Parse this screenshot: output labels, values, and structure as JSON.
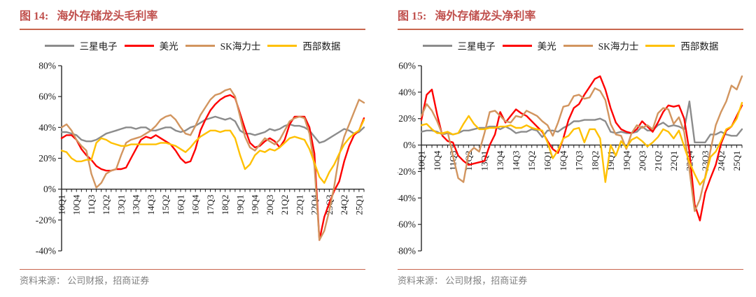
{
  "colors": {
    "title": "#C0504D",
    "rule": "#C8664E",
    "source_text": "#808080",
    "axis": "#262626",
    "samsung": "#8C8C8C",
    "micron": "#FE0000",
    "sk_hynix": "#D2955F",
    "western_digital": "#FFC000"
  },
  "panels": [
    {
      "fig_label": "图 14:",
      "title": "海外存储龙头毛利率",
      "source_text": "资料来源： 公司财报，招商证券",
      "chart_data": {
        "type": "line",
        "title": "海外存储龙头毛利率",
        "grid": false,
        "legend_position": "top",
        "ylim": [
          -40,
          80
        ],
        "ytick_step": 20,
        "ytick_suffix": "%",
        "x_tick_every": 3,
        "x": [
          "10Q1",
          "10Q2",
          "10Q3",
          "10Q4",
          "11Q1",
          "11Q2",
          "11Q3",
          "11Q4",
          "12Q1",
          "12Q2",
          "12Q3",
          "12Q4",
          "13Q1",
          "13Q2",
          "13Q3",
          "13Q4",
          "14Q1",
          "14Q2",
          "14Q3",
          "14Q4",
          "15Q1",
          "15Q2",
          "15Q3",
          "15Q4",
          "16Q1",
          "16Q2",
          "16Q3",
          "16Q4",
          "17Q1",
          "17Q2",
          "17Q3",
          "17Q4",
          "18Q1",
          "18Q2",
          "18Q3",
          "18Q4",
          "19Q1",
          "19Q2",
          "19Q3",
          "19Q4",
          "20Q1",
          "20Q2",
          "20Q3",
          "20Q4",
          "21Q1",
          "21Q2",
          "21Q3",
          "21Q4",
          "22Q1",
          "22Q2",
          "22Q3",
          "22Q4",
          "23Q1",
          "23Q2",
          "23Q3",
          "23Q4",
          "24Q1",
          "24Q2",
          "24Q3",
          "24Q4",
          "25Q1",
          "25Q2"
        ],
        "series": [
          {
            "name": "三星电子",
            "color": "#8C8C8C",
            "values": [
              37,
              37,
              36,
              35,
              32,
              31,
              31,
              32,
              34,
              36,
              37,
              38,
              39,
              40,
              40,
              39,
              40,
              40,
              38,
              38,
              39,
              40,
              40,
              38,
              37,
              38,
              40,
              41,
              43,
              45,
              46,
              47,
              46,
              45,
              46,
              44,
              38,
              36,
              36,
              35,
              36,
              37,
              39,
              38,
              39,
              41,
              42,
              41,
              41,
              40,
              38,
              34,
              30,
              31,
              33,
              35,
              37,
              39,
              38,
              36,
              37,
              40
            ]
          },
          {
            "name": "美光",
            "color": "#FE0000",
            "values": [
              33,
              35,
              35,
              32,
              26,
              22,
              19,
              15,
              13,
              12,
              12,
              13,
              13,
              14,
              20,
              26,
              32,
              34,
              33,
              35,
              33,
              31,
              29,
              25,
              20,
              17,
              18,
              26,
              38,
              45,
              51,
              55,
              58,
              60,
              61,
              59,
              49,
              39,
              30,
              27,
              28,
              31,
              33,
              31,
              27,
              32,
              42,
              47,
              47,
              47,
              40,
              23,
              -33,
              -18,
              -9,
              -1,
              5,
              18,
              28,
              35,
              38,
              46
            ]
          },
          {
            "name": "SK海力士",
            "color": "#D2955F",
            "values": [
              40,
              42,
              38,
              32,
              28,
              25,
              10,
              1,
              4,
              10,
              12,
              13,
              22,
              30,
              32,
              33,
              34,
              36,
              38,
              41,
              45,
              47,
              48,
              45,
              40,
              36,
              35,
              41,
              48,
              53,
              58,
              61,
              62,
              64,
              65,
              60,
              47,
              34,
              27,
              25,
              29,
              33,
              31,
              29,
              32,
              38,
              44,
              46,
              47,
              46,
              36,
              15,
              -33,
              -27,
              -14,
              2,
              22,
              34,
              42,
              50,
              58,
              56
            ]
          },
          {
            "name": "西部数据",
            "color": "#FFC000",
            "values": [
              25,
              24,
              20,
              18,
              18,
              19,
              19,
              30,
              33,
              32,
              30,
              29,
              28,
              28,
              29,
              29,
              29,
              29,
              29,
              29,
              30,
              30,
              29,
              28,
              26,
              24,
              27,
              31,
              34,
              36,
              38,
              38,
              37,
              38,
              38,
              33,
              22,
              13,
              16,
              22,
              25,
              24,
              26,
              25,
              27,
              30,
              33,
              34,
              33,
              32,
              26,
              17,
              8,
              4,
              11,
              16,
              23,
              29,
              33,
              36,
              38,
              45
            ]
          }
        ]
      }
    },
    {
      "fig_label": "图 15:",
      "title": "海外存储龙头净利率",
      "source_text": "资料来源： 公司财报，招商证券",
      "chart_data": {
        "type": "line",
        "title": "海外存储龙头净利率",
        "grid": false,
        "legend_position": "top",
        "ylim": [
          -80,
          60
        ],
        "ytick_step": 20,
        "ytick_suffix": "%",
        "x_tick_every": 3,
        "x": [
          "10Q1",
          "10Q2",
          "10Q3",
          "10Q4",
          "11Q1",
          "11Q2",
          "11Q3",
          "11Q4",
          "12Q1",
          "12Q2",
          "12Q3",
          "12Q4",
          "13Q1",
          "13Q2",
          "13Q3",
          "13Q4",
          "14Q1",
          "14Q2",
          "14Q3",
          "14Q4",
          "15Q1",
          "15Q2",
          "15Q3",
          "15Q4",
          "16Q1",
          "16Q2",
          "16Q3",
          "16Q4",
          "17Q1",
          "17Q2",
          "17Q3",
          "17Q4",
          "18Q1",
          "18Q2",
          "18Q3",
          "18Q4",
          "19Q1",
          "19Q2",
          "19Q3",
          "19Q4",
          "20Q1",
          "20Q2",
          "20Q3",
          "20Q4",
          "21Q1",
          "21Q2",
          "21Q3",
          "21Q4",
          "22Q1",
          "22Q2",
          "22Q3",
          "22Q4",
          "23Q1",
          "23Q2",
          "23Q3",
          "23Q4",
          "24Q1",
          "24Q2",
          "24Q3",
          "24Q4",
          "25Q1",
          "25Q2"
        ],
        "series": [
          {
            "name": "三星电子",
            "color": "#8C8C8C",
            "values": [
              10,
              11,
              11,
              10,
              8,
              9,
              8,
              9,
              11,
              11,
              12,
              13,
              13,
              14,
              14,
              12,
              14,
              12,
              9,
              10,
              10,
              12,
              11,
              6,
              11,
              11,
              10,
              13,
              15,
              18,
              18,
              19,
              19,
              19,
              20,
              18,
              10,
              9,
              10,
              9,
              9,
              10,
              14,
              11,
              11,
              15,
              17,
              14,
              15,
              14,
              12,
              33,
              2,
              2,
              2,
              8,
              8,
              10,
              8,
              7,
              7,
              12
            ]
          },
          {
            "name": "美光",
            "color": "#FE0000",
            "values": [
              19,
              38,
              42,
              23,
              7,
              3,
              2,
              -8,
              -12,
              -15,
              -14,
              -13,
              -12,
              0,
              8,
              25,
              17,
              22,
              27,
              24,
              22,
              18,
              14,
              10,
              3,
              -3,
              -6,
              5,
              19,
              28,
              31,
              38,
              44,
              50,
              52,
              42,
              28,
              17,
              12,
              10,
              9,
              12,
              18,
              14,
              10,
              17,
              25,
              30,
              29,
              30,
              20,
              -5,
              -45,
              -57,
              -36,
              -25,
              -15,
              1,
              11,
              14,
              22,
              30
            ]
          },
          {
            "name": "SK海力士",
            "color": "#D2955F",
            "values": [
              22,
              31,
              26,
              18,
              8,
              10,
              -8,
              -25,
              -28,
              -6,
              -2,
              -5,
              9,
              25,
              26,
              22,
              18,
              17,
              22,
              21,
              26,
              24,
              22,
              18,
              15,
              7,
              17,
              29,
              30,
              37,
              38,
              35,
              36,
              43,
              41,
              34,
              16,
              8,
              7,
              -3,
              9,
              15,
              13,
              15,
              12,
              24,
              28,
              27,
              16,
              21,
              10,
              -19,
              -50,
              -41,
              -24,
              -4,
              15,
              25,
              33,
              45,
              42,
              52
            ]
          },
          {
            "name": "西部数据",
            "color": "#FFC000",
            "values": [
              15,
              16,
              12,
              9,
              9,
              10,
              8,
              9,
              16,
              22,
              16,
              12,
              12,
              13,
              13,
              14,
              14,
              15,
              13,
              13,
              15,
              13,
              12,
              11,
              2,
              -10,
              -4,
              5,
              7,
              12,
              13,
              2,
              12,
              12,
              5,
              -28,
              0,
              -8,
              3,
              -2,
              4,
              6,
              3,
              -1,
              2,
              6,
              12,
              10,
              5,
              11,
              -1,
              -13,
              -22,
              -30,
              -25,
              -9,
              -5,
              3,
              12,
              14,
              20,
              32
            ]
          }
        ]
      }
    }
  ]
}
